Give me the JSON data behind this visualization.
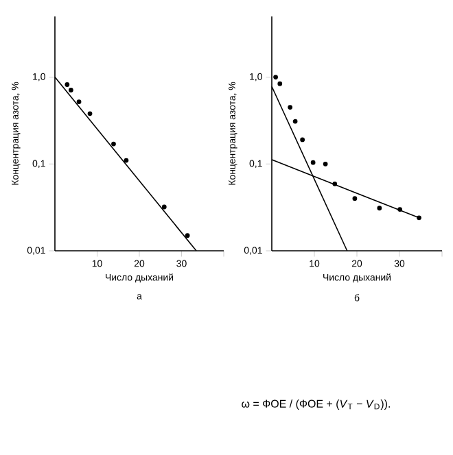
{
  "chart_data": [
    {
      "type": "scatter",
      "xlabel": "Число дыханий",
      "ylabel": "Концентрация азота, %",
      "log": "y",
      "xlim": [
        0,
        40
      ],
      "ylim": [
        0.01,
        5
      ],
      "xticks": [
        10,
        20,
        30,
        {
          "value": 40,
          "label": null
        }
      ],
      "yticks": [
        {
          "value": 0.01,
          "label": "0,01"
        },
        {
          "value": 0.1,
          "label": "0,1"
        },
        {
          "value": 1,
          "label": "1,0"
        }
      ],
      "annotations": [
        "а"
      ],
      "series": [
        {
          "marker": "circle",
          "color": "#000000",
          "x": [
            2.9,
            3.8,
            5.7,
            8.3,
            13.9,
            16.9,
            25.9,
            31.4
          ],
          "values": [
            0.82,
            0.71,
            0.52,
            0.38,
            0.17,
            0.11,
            0.032,
            0.015
          ]
        },
        {
          "type": "line",
          "color": "#000000",
          "x": [
            0,
            33.5
          ],
          "values": [
            1,
            0.01
          ]
        }
      ]
    },
    {
      "type": "scatter",
      "xlabel": "Число дыханий",
      "ylabel": "Концентрация азота, %",
      "log": "y",
      "xlim": [
        0,
        40
      ],
      "ylim": [
        0.01,
        5
      ],
      "xticks": [
        10,
        20,
        30,
        {
          "value": 40,
          "label": null
        }
      ],
      "yticks": [
        {
          "value": 0.01,
          "label": "0,01"
        },
        {
          "value": 0.1,
          "label": "0,1"
        },
        {
          "value": 1,
          "label": "1,0"
        }
      ],
      "annotations": [
        "б",
        "ω = ФОЕ / (ФОЕ + (*V*$_{T}$ − *V*$_{D}$))."
      ],
      "series": [
        {
          "marker": "circle",
          "color": "#000000",
          "x": [
            0.9,
            1.9,
            4.3,
            5.5,
            7.2,
            9.7,
            12.6,
            14.8,
            19.5,
            25.3,
            30.1,
            34.6
          ],
          "values": [
            1.0,
            0.84,
            0.45,
            0.31,
            0.19,
            0.104,
            0.1,
            0.059,
            0.04,
            0.031,
            0.03,
            0.024
          ]
        },
        {
          "type": "line",
          "color": "#000000",
          "x": [
            0,
            17.7
          ],
          "values": [
            0.78,
            0.01
          ]
        },
        {
          "type": "line",
          "color": "#000000",
          "x": [
            0,
            34.6
          ],
          "values": [
            0.112,
            0.024
          ]
        }
      ]
    }
  ]
}
